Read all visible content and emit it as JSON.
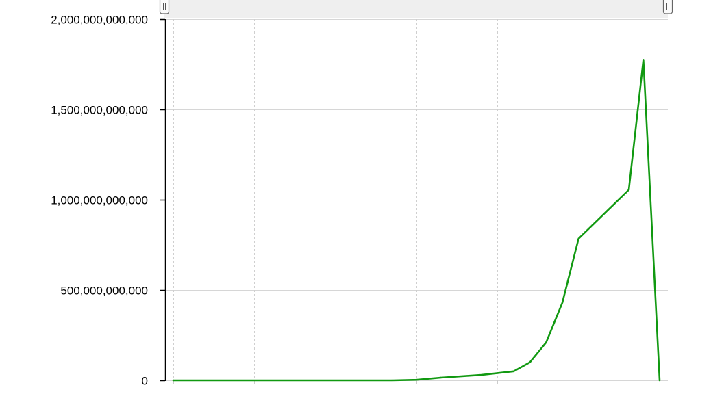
{
  "chart_data": {
    "type": "line",
    "title": "",
    "xlabel": "",
    "ylabel": "",
    "ylim": [
      0,
      2000000000000
    ],
    "yticks": [
      0,
      500000000000,
      1000000000000,
      1500000000000,
      2000000000000
    ],
    "ytick_labels": [
      "0",
      "500,000,000,000",
      "1,000,000,000,000",
      "1,500,000,000,000",
      "2,000,000,000,000"
    ],
    "xlim": [
      0,
      30
    ],
    "xgrid": [
      0,
      5,
      10,
      15,
      20,
      25,
      30
    ],
    "grid": true,
    "range_selector": true,
    "series": [
      {
        "color": "#119911",
        "points": [
          [
            0,
            0
          ],
          [
            13.5,
            0
          ],
          [
            15,
            3000000000
          ],
          [
            16.5,
            15000000000
          ],
          [
            19,
            30000000000
          ],
          [
            21,
            50000000000
          ],
          [
            22,
            100000000000
          ],
          [
            23,
            210000000000
          ],
          [
            24,
            430000000000
          ],
          [
            25,
            785000000000
          ],
          [
            28.1,
            1055000000000
          ],
          [
            29,
            1775000000000
          ],
          [
            30,
            0
          ]
        ]
      }
    ]
  }
}
